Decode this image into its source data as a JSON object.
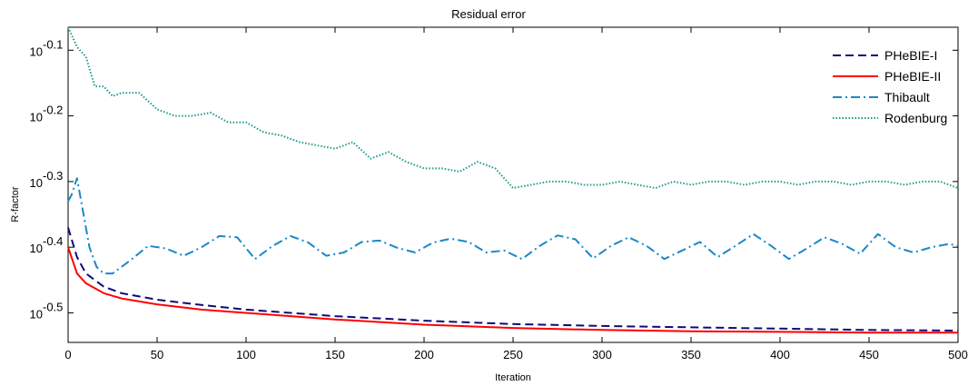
{
  "chart_data": {
    "type": "line",
    "title": "Residual error",
    "xlabel": "Iteration",
    "ylabel": "R-factor",
    "xlim": [
      0,
      500
    ],
    "ylim_log10": [
      -0.545,
      -0.065
    ],
    "yscale": "log",
    "x_ticks": [
      0,
      50,
      100,
      150,
      200,
      250,
      300,
      350,
      400,
      450,
      500
    ],
    "y_ticks": [
      {
        "base": "10",
        "exp": "-0.1",
        "value_log10": -0.1
      },
      {
        "base": "10",
        "exp": "-0.2",
        "value_log10": -0.2
      },
      {
        "base": "10",
        "exp": "-0.3",
        "value_log10": -0.3
      },
      {
        "base": "10",
        "exp": "-0.4",
        "value_log10": -0.4
      },
      {
        "base": "10",
        "exp": "-0.5",
        "value_log10": -0.5
      }
    ],
    "grid": false,
    "legend_position": "top-right",
    "series": [
      {
        "name": "PHeBIE-I",
        "color": "#0c0c7a",
        "style": "dashed",
        "x": [
          0,
          5,
          10,
          20,
          30,
          50,
          75,
          100,
          150,
          200,
          250,
          300,
          350,
          400,
          450,
          500
        ],
        "y_log10": [
          -0.37,
          -0.415,
          -0.44,
          -0.46,
          -0.47,
          -0.48,
          -0.488,
          -0.495,
          -0.505,
          -0.512,
          -0.517,
          -0.52,
          -0.522,
          -0.524,
          -0.526,
          -0.527
        ]
      },
      {
        "name": "PHeBIE-II",
        "color": "#ff0000",
        "style": "solid",
        "x": [
          0,
          5,
          10,
          20,
          30,
          50,
          75,
          100,
          150,
          200,
          250,
          300,
          350,
          400,
          450,
          500
        ],
        "y_log10": [
          -0.4,
          -0.44,
          -0.455,
          -0.47,
          -0.478,
          -0.487,
          -0.495,
          -0.5,
          -0.51,
          -0.518,
          -0.523,
          -0.526,
          -0.528,
          -0.529,
          -0.53,
          -0.53
        ]
      },
      {
        "name": "Thibault",
        "color": "#1a88c9",
        "style": "dashdot",
        "x": [
          0,
          2,
          5,
          8,
          12,
          16,
          20,
          25,
          35,
          45,
          55,
          65,
          75,
          85,
          95,
          105,
          115,
          125,
          135,
          145,
          155,
          165,
          175,
          185,
          195,
          205,
          215,
          225,
          235,
          245,
          255,
          265,
          275,
          285,
          295,
          305,
          315,
          325,
          335,
          345,
          355,
          365,
          375,
          385,
          395,
          405,
          415,
          425,
          435,
          445,
          455,
          465,
          475,
          485,
          495,
          500
        ],
        "y_log10": [
          -0.33,
          -0.32,
          -0.295,
          -0.34,
          -0.4,
          -0.43,
          -0.44,
          -0.44,
          -0.42,
          -0.398,
          -0.402,
          -0.413,
          -0.4,
          -0.383,
          -0.385,
          -0.418,
          -0.398,
          -0.383,
          -0.393,
          -0.413,
          -0.408,
          -0.392,
          -0.39,
          -0.401,
          -0.408,
          -0.393,
          -0.387,
          -0.392,
          -0.408,
          -0.405,
          -0.418,
          -0.398,
          -0.382,
          -0.388,
          -0.417,
          -0.398,
          -0.385,
          -0.398,
          -0.418,
          -0.405,
          -0.392,
          -0.415,
          -0.398,
          -0.38,
          -0.398,
          -0.418,
          -0.402,
          -0.385,
          -0.395,
          -0.41,
          -0.38,
          -0.4,
          -0.408,
          -0.4,
          -0.395,
          -0.398
        ]
      },
      {
        "name": "Rodenburg",
        "color": "#1a9a8a",
        "style": "dotted",
        "x": [
          0,
          5,
          10,
          15,
          20,
          25,
          30,
          40,
          50,
          60,
          70,
          80,
          90,
          100,
          110,
          120,
          130,
          140,
          150,
          160,
          170,
          180,
          190,
          200,
          210,
          220,
          230,
          240,
          250,
          260,
          270,
          280,
          290,
          300,
          310,
          320,
          330,
          340,
          350,
          360,
          370,
          380,
          390,
          400,
          410,
          420,
          430,
          440,
          450,
          460,
          470,
          480,
          490,
          500
        ],
        "y_log10": [
          -0.065,
          -0.095,
          -0.11,
          -0.155,
          -0.155,
          -0.17,
          -0.165,
          -0.165,
          -0.19,
          -0.2,
          -0.2,
          -0.195,
          -0.21,
          -0.21,
          -0.225,
          -0.23,
          -0.24,
          -0.245,
          -0.25,
          -0.24,
          -0.265,
          -0.255,
          -0.27,
          -0.28,
          -0.28,
          -0.285,
          -0.27,
          -0.28,
          -0.31,
          -0.305,
          -0.3,
          -0.3,
          -0.305,
          -0.305,
          -0.3,
          -0.305,
          -0.31,
          -0.3,
          -0.305,
          -0.3,
          -0.3,
          -0.305,
          -0.3,
          -0.3,
          -0.305,
          -0.3,
          -0.3,
          -0.305,
          -0.3,
          -0.3,
          -0.305,
          -0.3,
          -0.3,
          -0.31
        ]
      }
    ]
  }
}
